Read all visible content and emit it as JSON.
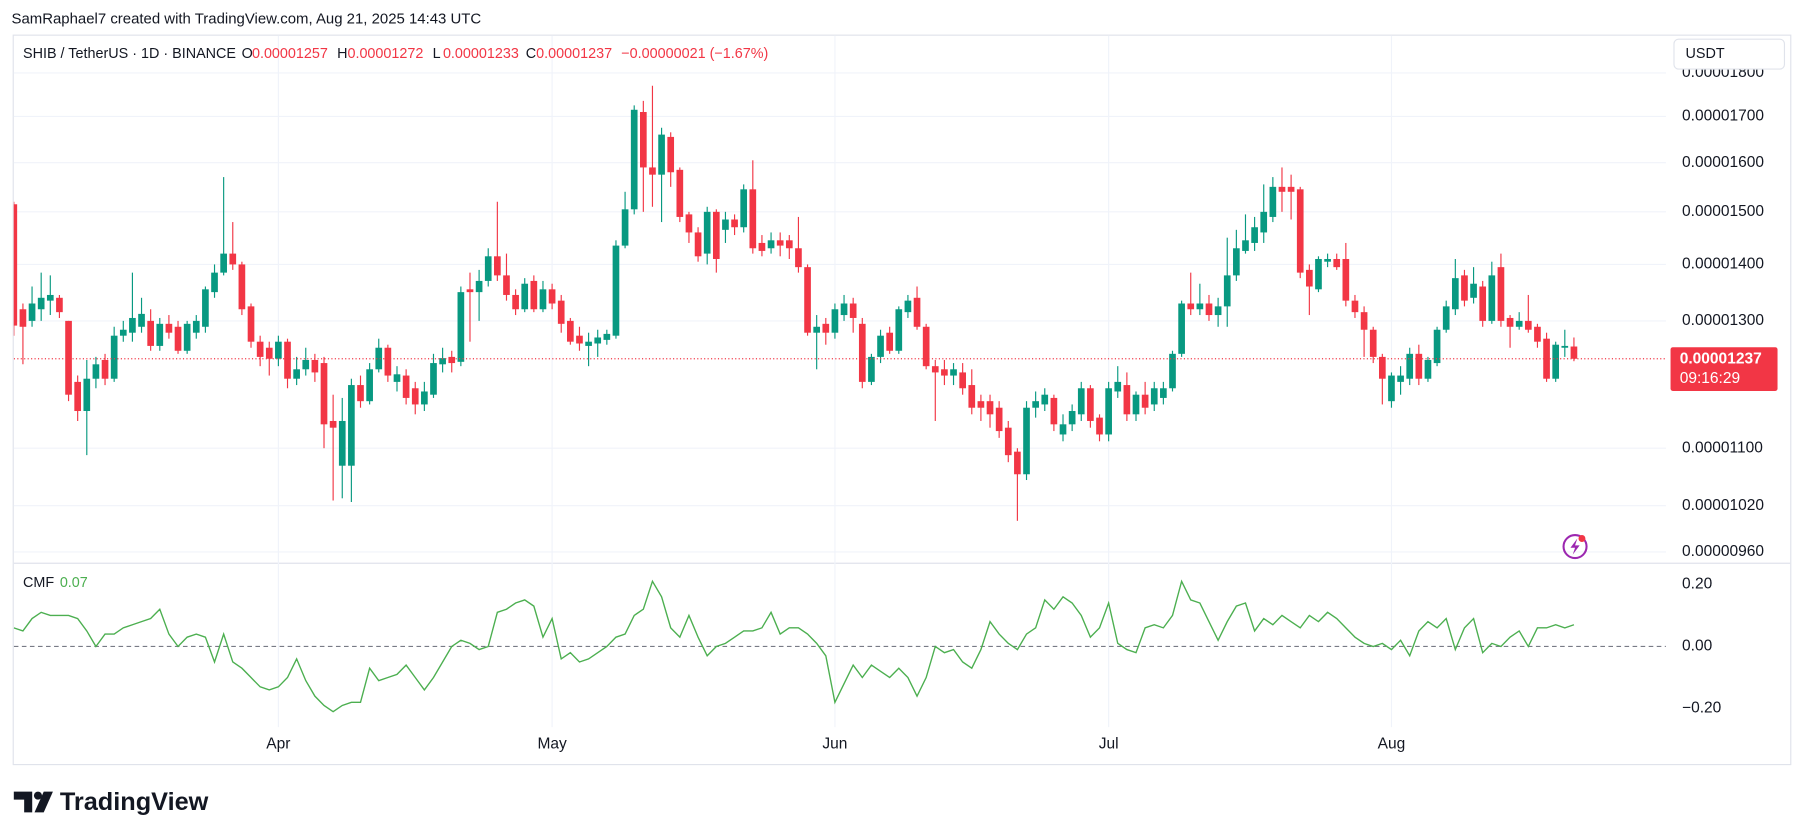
{
  "header": {
    "attribution": "SamRaphael7 created with TradingView.com, Aug 21, 2025 14:43 UTC",
    "brand": "TradingView"
  },
  "chart_data": [
    {
      "type": "candlestick",
      "symbol": "SHIB / TetherUS · 1D · BINANCE",
      "ohlc_labels": [
        "O",
        "H",
        "L",
        "C"
      ],
      "change": "−0.00000021 (−1.67%)",
      "currency": "USDT",
      "countdown": "09:16:29",
      "categories": [
        null,
        null,
        null,
        null,
        null,
        null,
        null,
        null,
        null,
        null,
        null,
        null,
        null,
        null,
        null,
        null,
        null,
        null,
        null,
        null,
        null,
        null,
        null,
        null,
        null,
        null,
        null,
        null,
        null,
        "Apr",
        null,
        null,
        null,
        null,
        null,
        null,
        null,
        null,
        null,
        null,
        null,
        null,
        null,
        null,
        null,
        null,
        null,
        null,
        null,
        null,
        null,
        null,
        null,
        null,
        null,
        null,
        null,
        null,
        null,
        "May",
        null,
        null,
        null,
        null,
        null,
        null,
        null,
        null,
        null,
        null,
        null,
        null,
        null,
        null,
        null,
        null,
        null,
        null,
        null,
        null,
        null,
        null,
        null,
        null,
        null,
        null,
        null,
        null,
        null,
        null,
        "Jun",
        null,
        null,
        null,
        null,
        null,
        null,
        null,
        null,
        null,
        null,
        null,
        null,
        null,
        null,
        null,
        null,
        null,
        null,
        null,
        null,
        null,
        null,
        null,
        null,
        null,
        null,
        null,
        null,
        null,
        "Jul",
        null,
        null,
        null,
        null,
        null,
        null,
        null,
        null,
        null,
        null,
        null,
        null,
        null,
        null,
        null,
        null,
        null,
        null,
        null,
        null,
        null,
        null,
        null,
        null,
        null,
        null,
        null,
        null,
        null,
        null,
        "Aug",
        null,
        null,
        null,
        null,
        null,
        null,
        null,
        null,
        null,
        null,
        null,
        null,
        null,
        null,
        null,
        null,
        null,
        null,
        null,
        null
      ],
      "open": [
        1.515e-05,
        1.32e-05,
        1.3e-05,
        1.32e-05,
        1.335e-05,
        1.34e-05,
        1.3e-05,
        1.2e-05,
        1.155e-05,
        1.205e-05,
        1.235e-05,
        1.205e-05,
        1.275e-05,
        1.28e-05,
        1.29e-05,
        1.3e-05,
        1.258e-05,
        1.295e-05,
        1.29e-05,
        1.25e-05,
        1.28e-05,
        1.29e-05,
        1.35e-05,
        1.385e-05,
        1.42e-05,
        1.4e-05,
        1.325e-05,
        1.265e-05,
        1.255e-05,
        1.237e-05,
        1.265e-05,
        1.205e-05,
        1.22e-05,
        1.235e-05,
        1.23e-05,
        1.14e-05,
        1.075e-05,
        1.075e-05,
        1.195e-05,
        1.17e-05,
        1.22e-05,
        1.255e-05,
        1.2e-05,
        1.21e-05,
        1.19e-05,
        1.165e-05,
        1.18e-05,
        1.228e-05,
        1.24e-05,
        1.232e-05,
        1.355e-05,
        1.35e-05,
        1.37e-05,
        1.415e-05,
        1.38e-05,
        1.345e-05,
        1.32e-05,
        1.37e-05,
        1.32e-05,
        1.355e-05,
        1.335e-05,
        1.3e-05,
        1.275e-05,
        1.258e-05,
        1.262e-05,
        1.268e-05,
        1.275e-05,
        1.435e-05,
        1.505e-05,
        1.71e-05,
        1.59e-05,
        1.575e-05,
        1.655e-05,
        1.585e-05,
        1.495e-05,
        1.46e-05,
        1.42e-05,
        1.5e-05,
        1.465e-05,
        1.485e-05,
        1.47e-05,
        1.545e-05,
        1.44e-05,
        1.43e-05,
        1.445e-05,
        1.445e-05,
        1.43e-05,
        1.395e-05,
        1.28e-05,
        1.295e-05,
        1.28e-05,
        1.31e-05,
        1.33e-05,
        1.295e-05,
        1.2e-05,
        1.24e-05,
        1.28e-05,
        1.25e-05,
        1.315e-05,
        1.34e-05,
        1.29e-05,
        1.225e-05,
        1.22e-05,
        1.21e-05,
        1.215e-05,
        1.195e-05,
        1.17e-05,
        1.17e-05,
        1.16e-05,
        1.13e-05,
        1.095e-05,
        1.063e-05,
        1.16e-05,
        1.165e-05,
        1.175e-05,
        1.12e-05,
        1.135e-05,
        1.15e-05,
        1.19e-05,
        1.145e-05,
        1.12e-05,
        1.185e-05,
        1.195e-05,
        1.15e-05,
        1.18e-05,
        1.165e-05,
        1.175e-05,
        1.19e-05,
        1.245e-05,
        1.33e-05,
        1.32e-05,
        1.33e-05,
        1.31e-05,
        1.325e-05,
        1.38e-05,
        1.425e-05,
        1.44e-05,
        1.46e-05,
        1.49e-05,
        1.55e-05,
        1.55e-05,
        1.545e-05,
        1.39e-05,
        1.355e-05,
        1.405e-05,
        1.41e-05,
        1.41e-05,
        1.335e-05,
        1.315e-05,
        1.285e-05,
        1.24e-05,
        1.17e-05,
        1.2e-05,
        1.205e-05,
        1.245e-05,
        1.205e-05,
        1.23e-05,
        1.285e-05,
        1.32e-05,
        1.38e-05,
        1.34e-05,
        1.36e-05,
        1.3e-05,
        1.395e-05,
        1.305e-05,
        1.29e-05,
        1.3e-05,
        1.29e-05,
        1.27e-05,
        1.205e-05,
        1.255e-05,
        1.257e-05
      ],
      "high": [
        1.52e-05,
        1.33e-05,
        1.36e-05,
        1.385e-05,
        1.38e-05,
        1.345e-05,
        1.3e-05,
        1.21e-05,
        1.235e-05,
        1.24e-05,
        1.245e-05,
        1.29e-05,
        1.3e-05,
        1.385e-05,
        1.34e-05,
        1.32e-05,
        1.305e-05,
        1.31e-05,
        1.3e-05,
        1.3e-05,
        1.31e-05,
        1.36e-05,
        1.4e-05,
        1.57e-05,
        1.48e-05,
        1.405e-05,
        1.33e-05,
        1.275e-05,
        1.265e-05,
        1.275e-05,
        1.27e-05,
        1.24e-05,
        1.255e-05,
        1.245e-05,
        1.24e-05,
        1.18e-05,
        1.175e-05,
        1.205e-05,
        1.21e-05,
        1.23e-05,
        1.27e-05,
        1.26e-05,
        1.225e-05,
        1.22e-05,
        1.2e-05,
        1.2e-05,
        1.245e-05,
        1.255e-05,
        1.25e-05,
        1.36e-05,
        1.385e-05,
        1.39e-05,
        1.43e-05,
        1.52e-05,
        1.42e-05,
        1.355e-05,
        1.375e-05,
        1.38e-05,
        1.37e-05,
        1.365e-05,
        1.345e-05,
        1.305e-05,
        1.29e-05,
        1.28e-05,
        1.285e-05,
        1.285e-05,
        1.445e-05,
        1.54e-05,
        1.725e-05,
        1.735e-05,
        1.77e-05,
        1.675e-05,
        1.665e-05,
        1.59e-05,
        1.5e-05,
        1.47e-05,
        1.51e-05,
        1.505e-05,
        1.5e-05,
        1.495e-05,
        1.555e-05,
        1.605e-05,
        1.455e-05,
        1.46e-05,
        1.46e-05,
        1.455e-05,
        1.49e-05,
        1.4e-05,
        1.31e-05,
        1.305e-05,
        1.33e-05,
        1.345e-05,
        1.34e-05,
        1.305e-05,
        1.245e-05,
        1.285e-05,
        1.29e-05,
        1.325e-05,
        1.345e-05,
        1.36e-05,
        1.295e-05,
        1.235e-05,
        1.235e-05,
        1.23e-05,
        1.23e-05,
        1.22e-05,
        1.18e-05,
        1.18e-05,
        1.17e-05,
        1.14e-05,
        1.1e-05,
        1.17e-05,
        1.185e-05,
        1.19e-05,
        1.18e-05,
        1.15e-05,
        1.165e-05,
        1.2e-05,
        1.195e-05,
        1.15e-05,
        1.2e-05,
        1.225e-05,
        1.215e-05,
        1.185e-05,
        1.2e-05,
        1.2e-05,
        1.2e-05,
        1.25e-05,
        1.335e-05,
        1.385e-05,
        1.365e-05,
        1.345e-05,
        1.34e-05,
        1.45e-05,
        1.465e-05,
        1.495e-05,
        1.49e-05,
        1.555e-05,
        1.57e-05,
        1.59e-05,
        1.575e-05,
        1.55e-05,
        1.4e-05,
        1.415e-05,
        1.42e-05,
        1.42e-05,
        1.44e-05,
        1.345e-05,
        1.325e-05,
        1.29e-05,
        1.245e-05,
        1.215e-05,
        1.225e-05,
        1.255e-05,
        1.26e-05,
        1.24e-05,
        1.29e-05,
        1.335e-05,
        1.41e-05,
        1.39e-05,
        1.395e-05,
        1.37e-05,
        1.405e-05,
        1.42e-05,
        1.31e-05,
        1.315e-05,
        1.345e-05,
        1.295e-05,
        1.28e-05,
        1.265e-05,
        1.285e-05,
        1.272e-05
      ],
      "low": [
        1.275e-05,
        1.228e-05,
        1.29e-05,
        1.3e-05,
        1.31e-05,
        1.305e-05,
        1.17e-05,
        1.14e-05,
        1.09e-05,
        1.19e-05,
        1.195e-05,
        1.2e-05,
        1.265e-05,
        1.265e-05,
        1.28e-05,
        1.25e-05,
        1.25e-05,
        1.27e-05,
        1.245e-05,
        1.245e-05,
        1.27e-05,
        1.28e-05,
        1.34e-05,
        1.38e-05,
        1.39e-05,
        1.31e-05,
        1.255e-05,
        1.225e-05,
        1.21e-05,
        1.225e-05,
        1.19e-05,
        1.195e-05,
        1.21e-05,
        1.2e-05,
        1.1e-05,
        1.027e-05,
        1.03e-05,
        1.025e-05,
        1.16e-05,
        1.165e-05,
        1.215e-05,
        1.2e-05,
        1.185e-05,
        1.165e-05,
        1.15e-05,
        1.155e-05,
        1.175e-05,
        1.215e-05,
        1.215e-05,
        1.225e-05,
        1.265e-05,
        1.3e-05,
        1.36e-05,
        1.37e-05,
        1.335e-05,
        1.31e-05,
        1.315e-05,
        1.315e-05,
        1.315e-05,
        1.32e-05,
        1.28e-05,
        1.26e-05,
        1.25e-05,
        1.225e-05,
        1.24e-05,
        1.26e-05,
        1.27e-05,
        1.43e-05,
        1.495e-05,
        1.5e-05,
        1.51e-05,
        1.48e-05,
        1.55e-05,
        1.48e-05,
        1.44e-05,
        1.405e-05,
        1.4e-05,
        1.385e-05,
        1.44e-05,
        1.455e-05,
        1.46e-05,
        1.42e-05,
        1.415e-05,
        1.42e-05,
        1.415e-05,
        1.41e-05,
        1.385e-05,
        1.275e-05,
        1.22e-05,
        1.26e-05,
        1.27e-05,
        1.3e-05,
        1.28e-05,
        1.19e-05,
        1.195e-05,
        1.23e-05,
        1.245e-05,
        1.245e-05,
        1.305e-05,
        1.285e-05,
        1.22e-05,
        1.14e-05,
        1.195e-05,
        1.195e-05,
        1.18e-05,
        1.15e-05,
        1.14e-05,
        1.13e-05,
        1.115e-05,
        1.08e-05,
        1e-05,
        1.055e-05,
        1.145e-05,
        1.155e-05,
        1.125e-05,
        1.11e-05,
        1.125e-05,
        1.14e-05,
        1.13e-05,
        1.11e-05,
        1.11e-05,
        1.175e-05,
        1.14e-05,
        1.14e-05,
        1.15e-05,
        1.155e-05,
        1.165e-05,
        1.185e-05,
        1.24e-05,
        1.31e-05,
        1.31e-05,
        1.3e-05,
        1.29e-05,
        1.29e-05,
        1.37e-05,
        1.42e-05,
        1.425e-05,
        1.44e-05,
        1.48e-05,
        1.5e-05,
        1.485e-05,
        1.375e-05,
        1.31e-05,
        1.35e-05,
        1.395e-05,
        1.39e-05,
        1.325e-05,
        1.305e-05,
        1.24e-05,
        1.23e-05,
        1.165e-05,
        1.16e-05,
        1.18e-05,
        1.195e-05,
        1.195e-05,
        1.2e-05,
        1.225e-05,
        1.28e-05,
        1.31e-05,
        1.325e-05,
        1.33e-05,
        1.29e-05,
        1.295e-05,
        1.29e-05,
        1.255e-05,
        1.285e-05,
        1.28e-05,
        1.255e-05,
        1.2e-05,
        1.2e-05,
        1.24e-05,
        1.233e-05
      ],
      "close": [
        1.292e-05,
        1.29e-05,
        1.33e-05,
        1.34e-05,
        1.345e-05,
        1.315e-05,
        1.18e-05,
        1.155e-05,
        1.205e-05,
        1.228e-05,
        1.205e-05,
        1.275e-05,
        1.285e-05,
        1.305e-05,
        1.312e-05,
        1.258e-05,
        1.295e-05,
        1.28e-05,
        1.25e-05,
        1.295e-05,
        1.3e-05,
        1.355e-05,
        1.385e-05,
        1.42e-05,
        1.4e-05,
        1.32e-05,
        1.265e-05,
        1.24e-05,
        1.237e-05,
        1.265e-05,
        1.205e-05,
        1.22e-05,
        1.235e-05,
        1.215e-05,
        1.135e-05,
        1.13e-05,
        1.14e-05,
        1.195e-05,
        1.17e-05,
        1.22e-05,
        1.255e-05,
        1.21e-05,
        1.212e-05,
        1.175e-05,
        1.165e-05,
        1.185e-05,
        1.23e-05,
        1.238e-05,
        1.23e-05,
        1.35e-05,
        1.35e-05,
        1.37e-05,
        1.415e-05,
        1.38e-05,
        1.345e-05,
        1.32e-05,
        1.365e-05,
        1.32e-05,
        1.355e-05,
        1.33e-05,
        1.295e-05,
        1.265e-05,
        1.262e-05,
        1.265e-05,
        1.272e-05,
        1.278e-05,
        1.435e-05,
        1.505e-05,
        1.715e-05,
        1.59e-05,
        1.575e-05,
        1.66e-05,
        1.58e-05,
        1.49e-05,
        1.46e-05,
        1.415e-05,
        1.5e-05,
        1.41e-05,
        1.485e-05,
        1.47e-05,
        1.545e-05,
        1.43e-05,
        1.425e-05,
        1.445e-05,
        1.435e-05,
        1.43e-05,
        1.395e-05,
        1.28e-05,
        1.29e-05,
        1.28e-05,
        1.32e-05,
        1.33e-05,
        1.305e-05,
        1.2e-05,
        1.24e-05,
        1.275e-05,
        1.25e-05,
        1.32e-05,
        1.335e-05,
        1.29e-05,
        1.225e-05,
        1.215e-05,
        1.21e-05,
        1.22e-05,
        1.19e-05,
        1.16e-05,
        1.16e-05,
        1.15e-05,
        1.125e-05,
        1.09e-05,
        1.063e-05,
        1.16e-05,
        1.17e-05,
        1.18e-05,
        1.135e-05,
        1.135e-05,
        1.155e-05,
        1.19e-05,
        1.14e-05,
        1.12e-05,
        1.19e-05,
        1.2e-05,
        1.15e-05,
        1.18e-05,
        1.16e-05,
        1.19e-05,
        1.19e-05,
        1.245e-05,
        1.33e-05,
        1.32e-05,
        1.33e-05,
        1.31e-05,
        1.325e-05,
        1.38e-05,
        1.43e-05,
        1.445e-05,
        1.47e-05,
        1.5e-05,
        1.55e-05,
        1.54e-05,
        1.54e-05,
        1.385e-05,
        1.36e-05,
        1.41e-05,
        1.41e-05,
        1.395e-05,
        1.335e-05,
        1.315e-05,
        1.285e-05,
        1.24e-05,
        1.205e-05,
        1.21e-05,
        1.21e-05,
        1.245e-05,
        1.205e-05,
        1.235e-05,
        1.285e-05,
        1.325e-05,
        1.375e-05,
        1.335e-05,
        1.365e-05,
        1.3e-05,
        1.38e-05,
        1.3e-05,
        1.29e-05,
        1.3e-05,
        1.285e-05,
        1.265e-05,
        1.205e-05,
        1.26e-05,
        1.258e-05,
        1.237e-05
      ],
      "up_color": "#089981",
      "down_color": "#f23645",
      "log_scale": true,
      "grid": true,
      "ylim": [
        9.48e-06,
        1.89e-05
      ],
      "yticks": [
        {
          "value": 1.8e-05,
          "label": "0.00001800"
        },
        {
          "value": 1.7e-05,
          "label": "0.00001700"
        },
        {
          "value": 1.6e-05,
          "label": "0.00001600"
        },
        {
          "value": 1.5e-05,
          "label": "0.00001500"
        },
        {
          "value": 1.4e-05,
          "label": "0.00001400"
        },
        {
          "value": 1.3e-05,
          "label": "0.00001300"
        },
        {
          "value": 1.1e-05,
          "label": "0.00001100"
        },
        {
          "value": 1.02e-05,
          "label": "0.00001020"
        },
        {
          "value": 9.6e-06,
          "label": "0.00000960"
        }
      ]
    },
    {
      "type": "line",
      "name": "CMF",
      "color": "#4caf50",
      "values": [
        0.06,
        0.05,
        0.09,
        0.11,
        0.1,
        0.1,
        0.1,
        0.09,
        0.05,
        0,
        0.04,
        0.04,
        0.06,
        0.07,
        0.08,
        0.09,
        0.12,
        0.04,
        0,
        0.03,
        0.04,
        0.03,
        -0.05,
        0.04,
        -0.05,
        -0.07,
        -0.1,
        -0.13,
        -0.14,
        -0.13,
        -0.1,
        -0.04,
        -0.11,
        -0.16,
        -0.19,
        -0.21,
        -0.19,
        -0.18,
        -0.18,
        -0.07,
        -0.11,
        -0.1,
        -0.09,
        -0.06,
        -0.1,
        -0.14,
        -0.1,
        -0.05,
        0,
        0.02,
        0.01,
        -0.01,
        0,
        0.11,
        0.12,
        0.14,
        0.15,
        0.13,
        0.03,
        0.09,
        -0.04,
        -0.02,
        -0.05,
        -0.04,
        -0.02,
        0,
        0.03,
        0.04,
        0.1,
        0.12,
        0.21,
        0.16,
        0.06,
        0.03,
        0.1,
        0.03,
        -0.03,
        0,
        0.01,
        0.03,
        0.05,
        0.05,
        0.06,
        0.11,
        0.04,
        0.06,
        0.06,
        0.04,
        0.01,
        -0.03,
        -0.18,
        -0.12,
        -0.06,
        -0.1,
        -0.06,
        -0.08,
        -0.1,
        -0.07,
        -0.1,
        -0.16,
        -0.1,
        0,
        -0.02,
        -0.01,
        -0.05,
        -0.07,
        -0.01,
        0.08,
        0.04,
        0.01,
        -0.01,
        0.04,
        0.06,
        0.15,
        0.12,
        0.16,
        0.14,
        0.1,
        0.03,
        0.06,
        0.14,
        0.01,
        -0.01,
        -0.02,
        0.06,
        0.07,
        0.06,
        0.1,
        0.21,
        0.15,
        0.14,
        0.08,
        0.02,
        0.08,
        0.13,
        0.14,
        0.05,
        0.09,
        0.07,
        0.1,
        0.08,
        0.06,
        0.1,
        0.08,
        0.11,
        0.09,
        0.06,
        0.03,
        0.01,
        0,
        0.01,
        -0.01,
        0.02,
        -0.03,
        0.05,
        0.08,
        0.06,
        0.09,
        -0.01,
        0.06,
        0.09,
        -0.02,
        0.01,
        0,
        0.03,
        0.05,
        0,
        0.06,
        0.06,
        0.07,
        0.06,
        0.07
      ],
      "ylim": [
        -0.26,
        0.27
      ],
      "yticks": [
        {
          "value": 0.2,
          "label": "0.20"
        },
        {
          "value": 0,
          "label": "0.00"
        },
        {
          "value": -0.2,
          "label": "−0.20"
        }
      ]
    }
  ]
}
